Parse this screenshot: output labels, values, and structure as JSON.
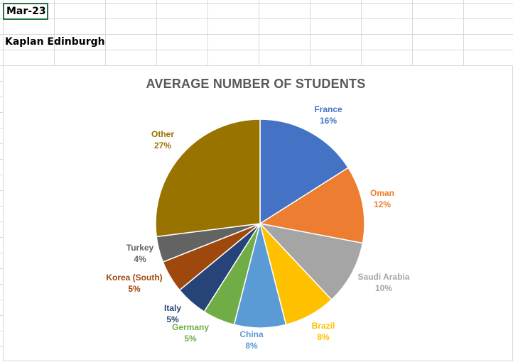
{
  "sheet": {
    "selected_cell_value": "Mar-23",
    "heading_value": "Kaplan Edinburgh"
  },
  "chart_data": {
    "type": "pie",
    "title": "AVERAGE NUMBER OF STUDENTS",
    "slices": [
      {
        "label": "France",
        "value": 16,
        "display": "16%",
        "color": "#4472c4"
      },
      {
        "label": "Oman",
        "value": 12,
        "display": "12%",
        "color": "#ed7d31"
      },
      {
        "label": "Saudi Arabia",
        "value": 10,
        "display": "10%",
        "color": "#a5a5a5"
      },
      {
        "label": "Brazil",
        "value": 8,
        "display": "8%",
        "color": "#ffc000"
      },
      {
        "label": "China",
        "value": 8,
        "display": "8%",
        "color": "#5b9bd5"
      },
      {
        "label": "Germany",
        "value": 5,
        "display": "5%",
        "color": "#70ad47"
      },
      {
        "label": "Italy",
        "value": 5,
        "display": "5%",
        "color": "#264478"
      },
      {
        "label": "Korea (South)",
        "value": 5,
        "display": "5%",
        "color": "#9e480e"
      },
      {
        "label": "Turkey",
        "value": 4,
        "display": "4%",
        "color": "#636363"
      },
      {
        "label": "Other",
        "value": 27,
        "display": "27%",
        "color": "#997300"
      }
    ],
    "legend": "none",
    "data_labels": "outside"
  }
}
